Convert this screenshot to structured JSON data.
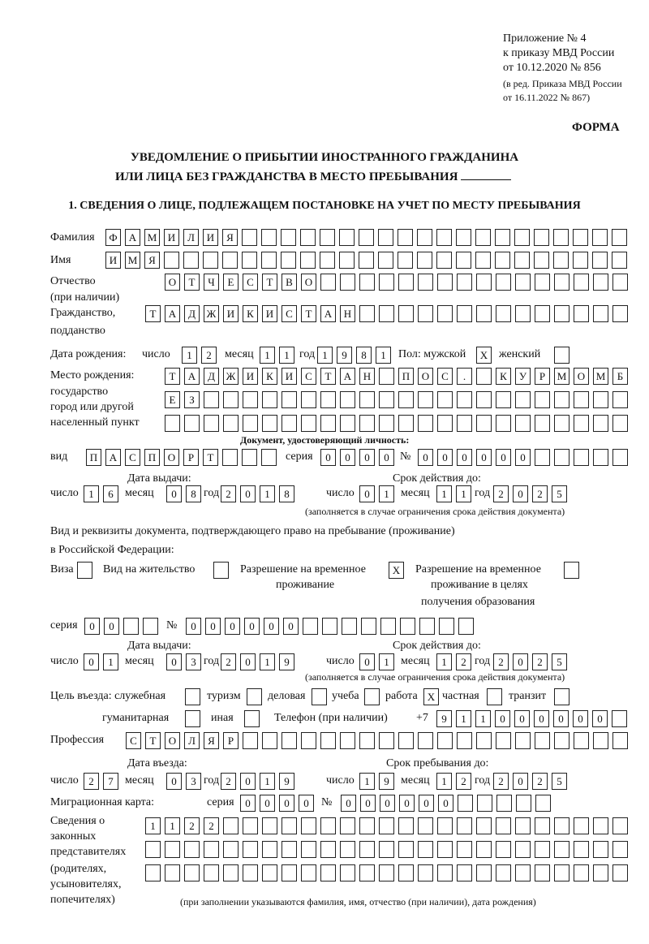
{
  "header": {
    "line1": "Приложение № 4",
    "line2": "к приказу МВД России",
    "line3": "от 10.12.2020 № 856",
    "line4": "(в ред. Приказа МВД России",
    "line5": "от 16.11.2022 № 867)",
    "form_label": "ФОРМА"
  },
  "title": {
    "line1": "УВЕДОМЛЕНИЕ О ПРИБЫТИИ ИНОСТРАННОГО ГРАЖДАНИНА",
    "line2": "ИЛИ ЛИЦА БЕЗ ГРАЖДАНСТВА В МЕСТО ПРЕБЫВАНИЯ"
  },
  "section1": {
    "heading": "1. СВЕДЕНИЯ О ЛИЦЕ, ПОДЛЕЖАЩЕМ ПОСТАНОВКЕ НА УЧЕТ ПО МЕСТУ ПРЕБЫВАНИЯ",
    "surname": {
      "label": "Фамилия",
      "value": "ФАМИЛИЯ"
    },
    "name": {
      "label": "Имя",
      "value": "ИМЯ"
    },
    "patronymic": {
      "label": "Отчество",
      "label2": "(при наличии)",
      "value": "ОТЧЕСТВО"
    },
    "citizenship": {
      "label": "Гражданство,",
      "label2": "подданство",
      "value": "ТАДЖИКИСТАН"
    },
    "birth_date": {
      "label": "Дата рождения:",
      "day_label": "число",
      "month_label": "месяц",
      "year_label": "год",
      "day": "12",
      "month": "11",
      "year": "1981"
    },
    "sex": {
      "label_male": "Пол: мужской",
      "male": "X",
      "label_female": "женский",
      "female": ""
    },
    "birth_place": {
      "label1": "Место рождения:",
      "label2": "государство",
      "label3": "город или другой",
      "label4": "населенный пункт",
      "line1": "ТАДЖИКИСТАН ПОС. КУРМОМБ",
      "line2": "ЕЗ",
      "line3": ""
    },
    "identity_doc": {
      "heading": "Документ, удостоверяющий личность:",
      "type_label": "вид",
      "type": "ПАСПОРТ",
      "series_label": "серия",
      "series": "0000",
      "number_label": "№",
      "number": "000000",
      "issue_heading": "Дата выдачи:",
      "valid_heading": "Срок действия до:",
      "day_label": "число",
      "month_label": "месяц",
      "year_label": "год",
      "issue_day": "16",
      "issue_month": "08",
      "issue_year": "2018",
      "valid_day": "01",
      "valid_month": "11",
      "valid_year": "2025",
      "note": "(заполняется в случае ограничения срока действия документа)"
    },
    "residence_doc": {
      "heading1": "Вид и реквизиты документа, подтверждающего право на пребывание (проживание)",
      "heading2": "в Российской Федерации:",
      "visa_label": "Виза",
      "visa": "",
      "residence_permit_label": "Вид на жительство",
      "residence_permit": "",
      "temp_permit_label1": "Разрешение на временное",
      "temp_permit_label2": "проживание",
      "temp_permit": "X",
      "temp_edu_label1": "Разрешение на временное",
      "temp_edu_label2": "проживание в целях",
      "temp_edu_label3": "получения образования",
      "temp_edu": "",
      "series_label": "серия",
      "series": "00",
      "number_label": "№",
      "number": "000000",
      "issue_heading": "Дата выдачи:",
      "valid_heading": "Срок действия до:",
      "day_label": "число",
      "month_label": "месяц",
      "year_label": "год",
      "issue_day": "01",
      "issue_month": "03",
      "issue_year": "2019",
      "valid_day": "01",
      "valid_month": "12",
      "valid_year": "2025",
      "note": "(заполняется в случае ограничения срока действия документа)"
    },
    "purpose": {
      "label": "Цель въезда: служебная",
      "official": "",
      "tourism_label": "туризм",
      "tourism": "",
      "business_label": "деловая",
      "business": "",
      "study_label": "учеба",
      "study": "",
      "work_label": "работа",
      "work": "X",
      "private_label": "частная",
      "private": "",
      "transit_label": "транзит",
      "transit": "",
      "humanitarian_label": "гуманитарная",
      "humanitarian": "",
      "other_label": "иная",
      "other": ""
    },
    "phone": {
      "label": "Телефон (при наличии)",
      "prefix": "+7",
      "value": "911000000"
    },
    "profession": {
      "label": "Профессия",
      "value": "СТОЛЯР"
    },
    "entry": {
      "entry_heading": "Дата въезда:",
      "stay_heading": "Срок пребывания до:",
      "day_label": "число",
      "month_label": "месяц",
      "year_label": "год",
      "entry_day": "27",
      "entry_month": "03",
      "entry_year": "2019",
      "stay_day": "19",
      "stay_month": "12",
      "stay_year": "2025"
    },
    "migration_card": {
      "label": "Миграционная карта:",
      "series_label": "серия",
      "series": "0000",
      "number_label": "№",
      "number": "000000"
    },
    "representatives": {
      "label1": "Сведения о",
      "label2": "законных",
      "label3": "представителях",
      "label4": "(родителях,",
      "label5": "усыновителях,",
      "label6": "попечителях)",
      "line1": "1122",
      "line2": "",
      "line3": "",
      "note": "(при заполнении указываются фамилия, имя, отчество (при наличии), дата рождения)"
    }
  }
}
